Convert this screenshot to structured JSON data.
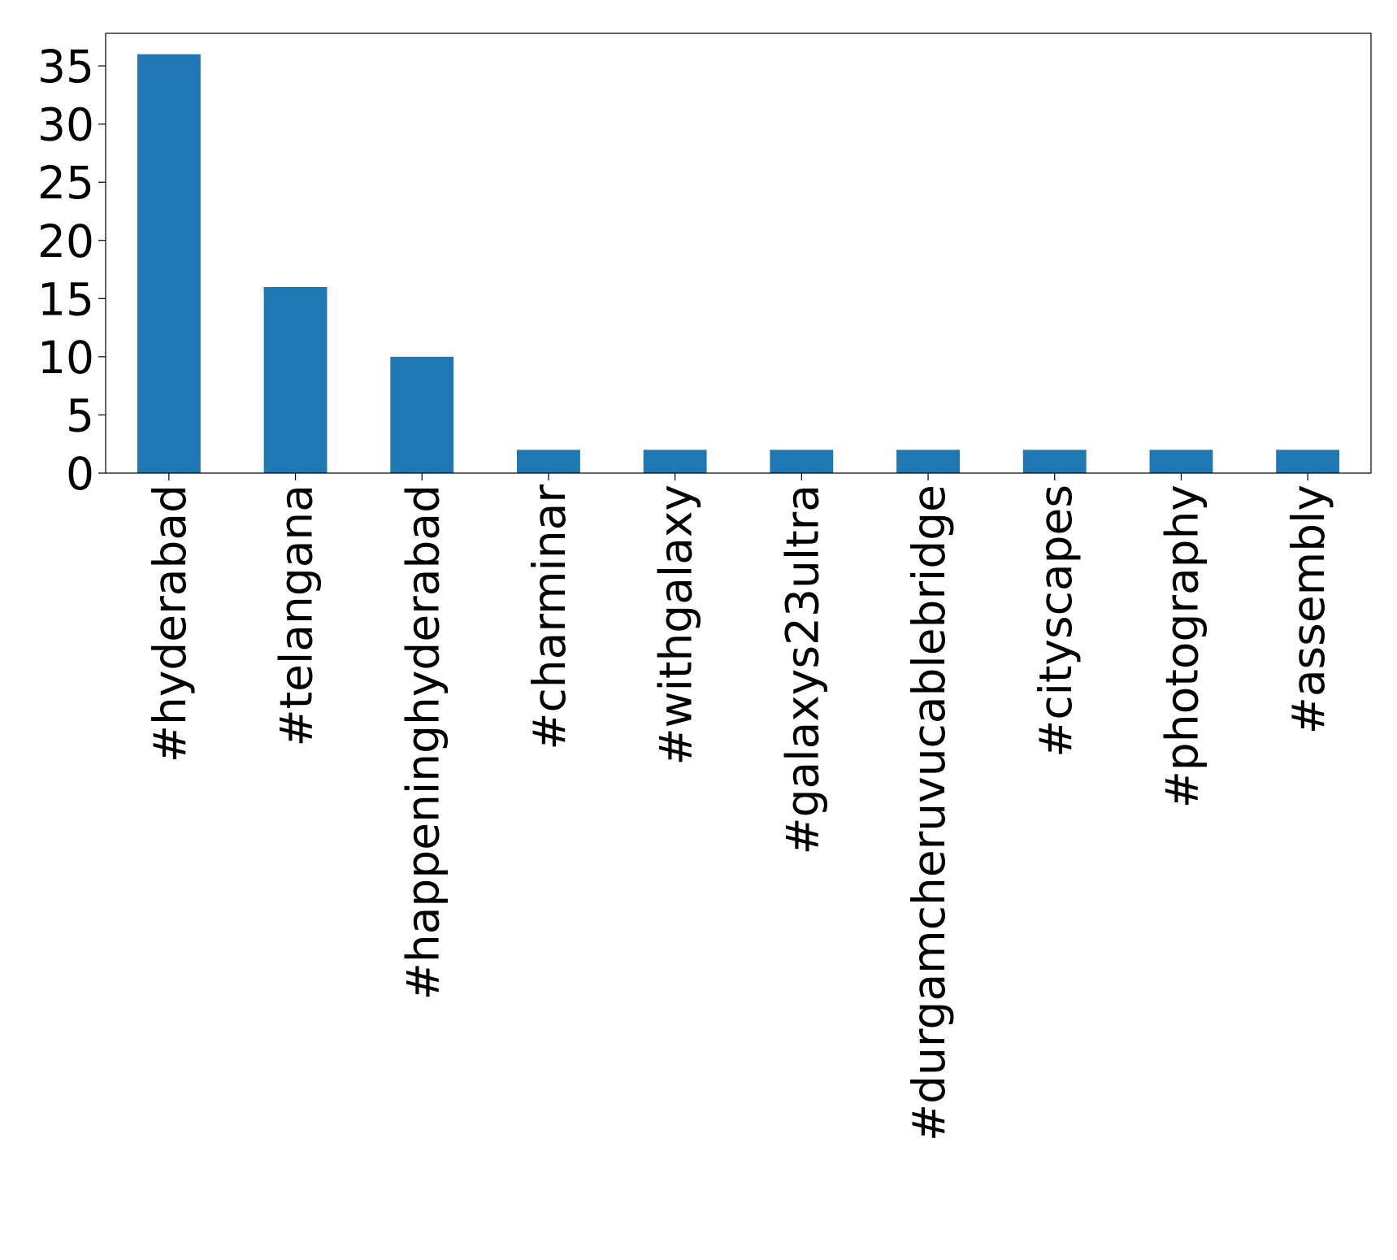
{
  "chart_data": {
    "type": "bar",
    "categories": [
      "#hyderabad",
      "#telangana",
      "#happeninghyderabad",
      "#charminar",
      "#withgalaxy",
      "#galaxys23ultra",
      "#durgamcheruvucablebridge",
      "#cityscapes",
      "#photography",
      "#assembly"
    ],
    "values": [
      36,
      16,
      10,
      2,
      2,
      2,
      2,
      2,
      2,
      2
    ],
    "color": "#1f77b4",
    "ylim": [
      0,
      37.8
    ],
    "yticks": [
      0,
      5,
      10,
      15,
      20,
      25,
      30,
      35
    ],
    "grid": false
  }
}
